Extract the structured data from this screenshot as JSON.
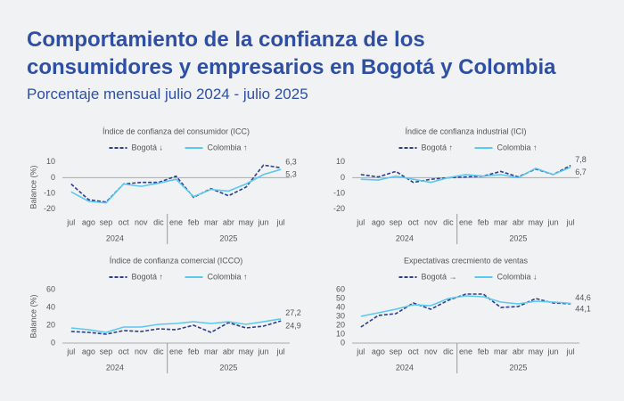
{
  "title": [
    "Comportamiento de la confianza de los",
    "consumidores y empresarios en Bogotá y Colombia"
  ],
  "subtitle": "Porcentaje mensual julio 2024 - julio 2025",
  "chart_data": [
    {
      "type": "line",
      "title": "Índice de confianza del consumidor (ICC)",
      "y_label": "Balance (%)",
      "categories": [
        "jul",
        "ago",
        "sep",
        "oct",
        "nov",
        "dic",
        "ene",
        "feb",
        "mar",
        "abr",
        "may",
        "jun",
        "jul"
      ],
      "groups": [
        {
          "label": "2024",
          "count": 6
        },
        {
          "label": "2025",
          "count": 7
        }
      ],
      "ylim": [
        -23,
        11
      ],
      "yticks": [
        10,
        0,
        -10,
        -20
      ],
      "series": [
        {
          "name": "Bogotá ↓",
          "color": "#2d3e8c",
          "dashed": true,
          "values": [
            -4,
            -14,
            -15.5,
            -4,
            -3,
            -3,
            1,
            -12.5,
            -7,
            -11.5,
            -6,
            8,
            6.3
          ],
          "value_labels": [
            null,
            null,
            null,
            null,
            null,
            null,
            null,
            null,
            null,
            null,
            null,
            null,
            "6,3"
          ]
        },
        {
          "name": "Colombia ↑",
          "color": "#5bc8ef",
          "dashed": false,
          "values": [
            -9,
            -15,
            -16,
            -4,
            -5.5,
            -3.5,
            -1,
            -12,
            -7.5,
            -8.5,
            -4,
            2,
            5.3
          ],
          "value_labels": [
            null,
            null,
            null,
            null,
            null,
            null,
            null,
            null,
            null,
            null,
            null,
            null,
            "5,3"
          ]
        }
      ]
    },
    {
      "type": "line",
      "title": "Índice de confianza industrial (ICI)",
      "categories": [
        "jul",
        "ago",
        "sep",
        "oct",
        "nov",
        "dic",
        "ene",
        "feb",
        "mar",
        "abr",
        "may",
        "jun",
        "jul"
      ],
      "groups": [
        {
          "label": "2024",
          "count": 6
        },
        {
          "label": "2025",
          "count": 7
        }
      ],
      "ylim": [
        -23,
        11
      ],
      "yticks": [
        10,
        0,
        -10,
        -20
      ],
      "series": [
        {
          "name": "Bogotá ↑",
          "color": "#2d3e8c",
          "dashed": true,
          "values": [
            2,
            0.5,
            4,
            -3,
            -1,
            0,
            0.5,
            1,
            4,
            0.5,
            5.5,
            2,
            7.8
          ],
          "value_labels": [
            null,
            null,
            null,
            null,
            null,
            null,
            null,
            null,
            null,
            null,
            null,
            null,
            "7,8"
          ]
        },
        {
          "name": "Colombia ↑",
          "color": "#5bc8ef",
          "dashed": false,
          "values": [
            -1,
            -1.5,
            1,
            -1,
            -3,
            0,
            2,
            1,
            2,
            0,
            6,
            2,
            6.7
          ],
          "value_labels": [
            null,
            null,
            null,
            null,
            null,
            null,
            null,
            null,
            null,
            null,
            null,
            null,
            "6,7"
          ]
        }
      ]
    },
    {
      "type": "line",
      "title": "Índice de confianza comercial (ICCO)",
      "y_label": "Balance (%)",
      "categories": [
        "jul",
        "ago",
        "sep",
        "oct",
        "nov",
        "dic",
        "ene",
        "feb",
        "mar",
        "abr",
        "may",
        "jun",
        "jul"
      ],
      "groups": [
        {
          "label": "2024",
          "count": 6
        },
        {
          "label": "2025",
          "count": 7
        }
      ],
      "ylim": [
        0,
        60
      ],
      "yticks": [
        0,
        20,
        40,
        60
      ],
      "series": [
        {
          "name": "Bogotá ↑",
          "color": "#2d3e8c",
          "dashed": true,
          "values": [
            13,
            12,
            10,
            14,
            13,
            16,
            15,
            20,
            12,
            23,
            17,
            19,
            24.9
          ],
          "value_labels": [
            null,
            null,
            null,
            null,
            null,
            null,
            null,
            null,
            null,
            null,
            null,
            null,
            "24,9"
          ]
        },
        {
          "name": "Colombia ↑",
          "color": "#5bc8ef",
          "dashed": false,
          "values": [
            17,
            15,
            12,
            18,
            18,
            21,
            22,
            24,
            22,
            24,
            21,
            24,
            27.2
          ],
          "value_labels": [
            null,
            null,
            null,
            null,
            null,
            null,
            null,
            null,
            null,
            null,
            null,
            null,
            "27,2"
          ]
        }
      ]
    },
    {
      "type": "line",
      "title": "Expectativas crecmiento de ventas",
      "categories": [
        "jul",
        "ago",
        "sep",
        "oct",
        "nov",
        "dic",
        "ene",
        "feb",
        "mar",
        "abr",
        "may",
        "jun",
        "jul"
      ],
      "groups": [
        {
          "label": "2024",
          "count": 6
        },
        {
          "label": "2025",
          "count": 7
        }
      ],
      "ylim": [
        0,
        60
      ],
      "yticks": [
        0,
        10,
        20,
        30,
        40,
        50,
        60
      ],
      "series": [
        {
          "name": "Bogotá →",
          "color": "#2d3e8c",
          "dashed": true,
          "values": [
            18,
            31,
            33,
            45,
            38,
            48,
            55,
            55,
            40,
            41,
            50,
            45,
            44.1
          ],
          "value_labels": [
            null,
            null,
            null,
            null,
            null,
            null,
            null,
            null,
            null,
            null,
            null,
            null,
            "44,1"
          ]
        },
        {
          "name": "Colombia ↓",
          "color": "#5bc8ef",
          "dashed": false,
          "values": [
            30,
            34,
            38,
            43,
            42,
            50,
            53,
            52,
            46,
            44,
            47,
            46,
            44.6
          ],
          "value_labels": [
            null,
            null,
            null,
            null,
            null,
            null,
            null,
            null,
            null,
            null,
            null,
            null,
            "44,6"
          ]
        }
      ]
    }
  ]
}
